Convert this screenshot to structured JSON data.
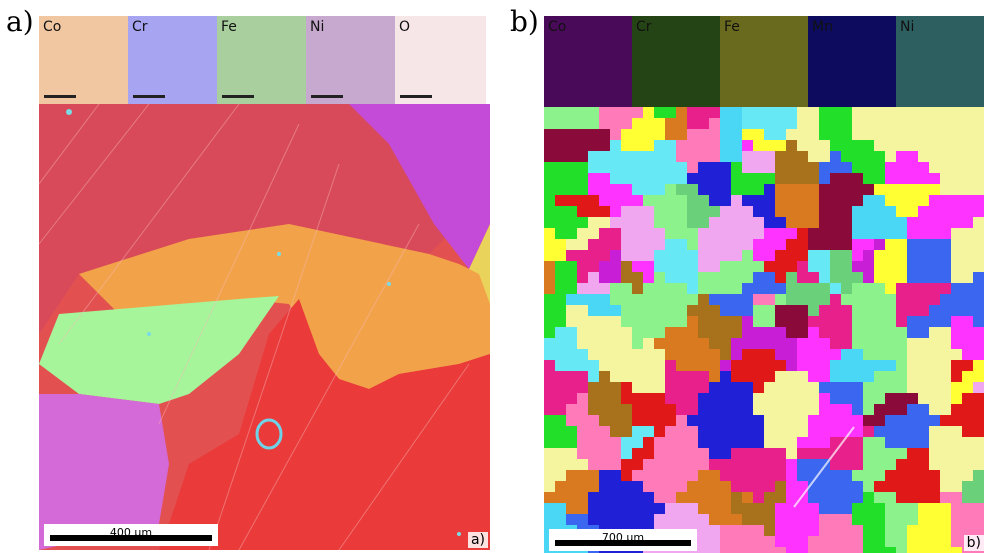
{
  "panel_a": {
    "letter": "a)",
    "element_maps": [
      {
        "label": "Co",
        "color": "#f1c7a2"
      },
      {
        "label": "Cr",
        "color": "#a7a4f2"
      },
      {
        "label": "Fe",
        "color": "#a9cf9e"
      },
      {
        "label": "Ni",
        "color": "#c7a9cf"
      },
      {
        "label": "O",
        "color": "#f6e6e8"
      }
    ],
    "scale_bar": "400 µm",
    "corner_label": "a)"
  },
  "panel_b": {
    "letter": "b)",
    "element_maps": [
      {
        "label": "Co",
        "color": "#4a0a5a"
      },
      {
        "label": "Cr",
        "color": "#244416"
      },
      {
        "label": "Fe",
        "color": "#6a6a1e"
      },
      {
        "label": "Mn",
        "color": "#0d0b5e"
      },
      {
        "label": "Ni",
        "color": "#2d5e60"
      }
    ],
    "scale_bar": "700 µm",
    "corner_label": "b)"
  }
}
